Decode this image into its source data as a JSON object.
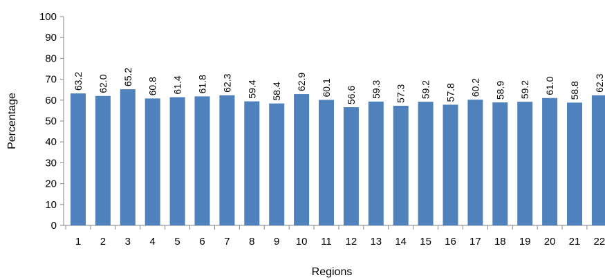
{
  "chart_data": {
    "type": "bar",
    "xlabel": "Regions",
    "ylabel": "Percentage",
    "ylim": [
      0,
      100
    ],
    "yticks": [
      0,
      10,
      20,
      30,
      40,
      50,
      60,
      70,
      80,
      90,
      100
    ],
    "grid": false,
    "legend": "none",
    "bar_color": "#4F81BD",
    "categories": [
      "1",
      "2",
      "3",
      "4",
      "5",
      "6",
      "7",
      "8",
      "9",
      "10",
      "11",
      "12",
      "13",
      "14",
      "15",
      "16",
      "17",
      "18",
      "19",
      "20",
      "21",
      "22"
    ],
    "values": [
      63.2,
      62.0,
      65.2,
      60.8,
      61.4,
      61.8,
      62.3,
      59.4,
      58.4,
      62.9,
      60.1,
      56.6,
      59.3,
      57.3,
      59.2,
      57.8,
      60.2,
      58.9,
      59.2,
      61.0,
      58.8,
      62.3
    ],
    "data_labels": [
      "63.2",
      "62.0",
      "65.2",
      "60.8",
      "61.4",
      "61.8",
      "62.3",
      "59.4",
      "58.4",
      "62.9",
      "60.1",
      "56.6",
      "59.3",
      "57.3",
      "59.2",
      "57.8",
      "60.2",
      "58.9",
      "59.2",
      "61.0",
      "58.8",
      "62.3"
    ]
  }
}
